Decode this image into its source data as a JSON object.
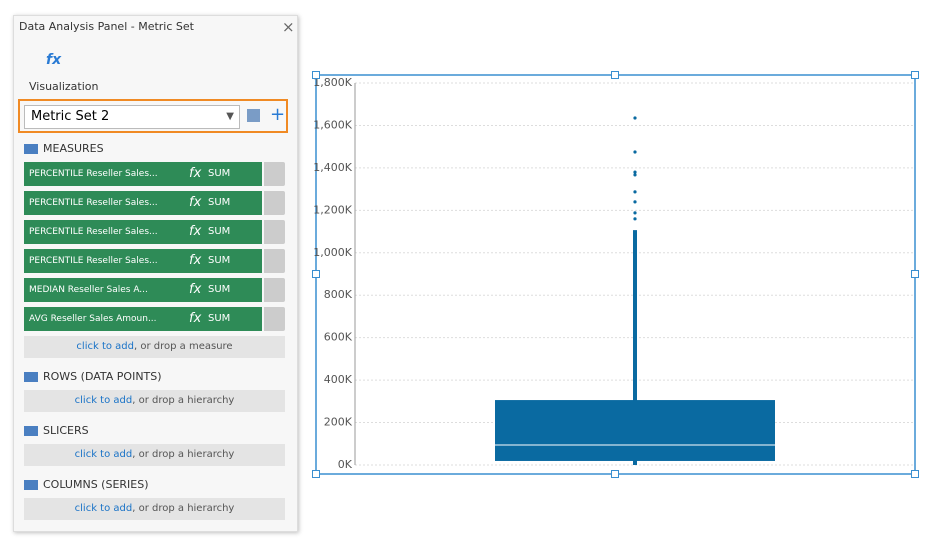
{
  "panel": {
    "title": "Data Analysis Panel - Metric Set",
    "visualization": "Visualization",
    "metric_set": "Metric Set 2",
    "function_icon": "fx",
    "aggregate": "SUM",
    "add_link": "click to add",
    "sections": [
      {
        "label": "MEASURES",
        "items": [
          "PERCENTILE Reseller Sales...",
          "PERCENTILE Reseller Sales...",
          "PERCENTILE Reseller Sales...",
          "PERCENTILE Reseller Sales...",
          "MEDIAN Reseller Sales A...",
          "AVG Reseller Sales Amoun..."
        ],
        "drop_hint": ", or drop a measure"
      },
      {
        "label": "ROWS (DATA POINTS)",
        "items": [],
        "drop_hint": ", or drop a hierarchy"
      },
      {
        "label": "SLICERS",
        "items": [],
        "drop_hint": ", or drop a hierarchy"
      },
      {
        "label": "COLUMNS (SERIES)",
        "items": [],
        "drop_hint": ", or drop a hierarchy"
      }
    ]
  },
  "chart_data": {
    "type": "box",
    "color": "#0a6aa1",
    "whisker_low": 0,
    "q1": 19000,
    "median": 94000,
    "q3": 306000,
    "whisker_high": 1107000,
    "outliers": [
      1160000,
      1188000,
      1240000,
      1287000,
      1367000,
      1380000,
      1475000,
      1635000
    ],
    "ylim": [
      0,
      1800000
    ],
    "grid": true,
    "yticks": [
      {
        "value": 0,
        "label": "0K"
      },
      {
        "value": 200000,
        "label": "200K"
      },
      {
        "value": 400000,
        "label": "400K"
      },
      {
        "value": 600000,
        "label": "600K"
      },
      {
        "value": 800000,
        "label": "800K"
      },
      {
        "value": 1000000,
        "label": "1,000K"
      },
      {
        "value": 1200000,
        "label": "1,200K"
      },
      {
        "value": 1400000,
        "label": "1,400K"
      },
      {
        "value": 1600000,
        "label": "1,600K"
      },
      {
        "value": 1800000,
        "label": "1,800K"
      }
    ]
  }
}
